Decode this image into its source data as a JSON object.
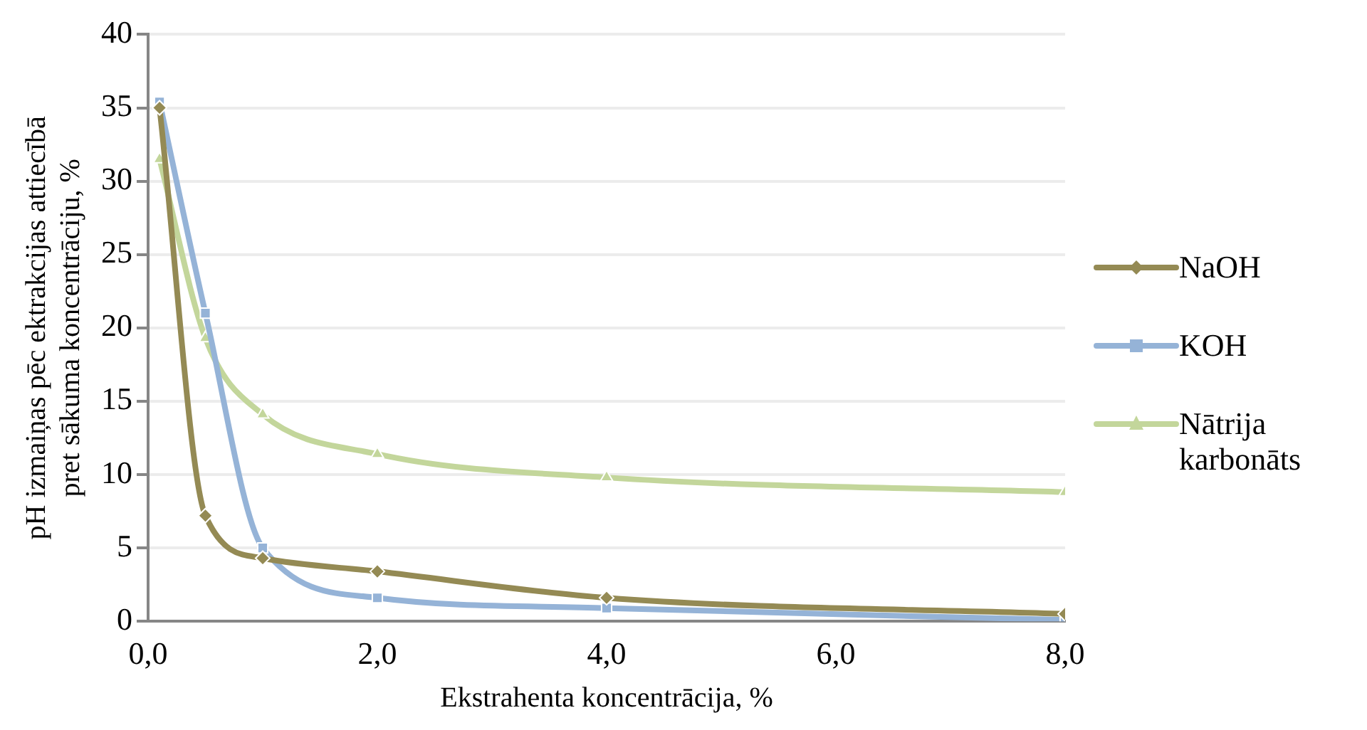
{
  "chart_data": {
    "type": "line",
    "xlabel": "Ekstrahenta koncentrācija, %",
    "ylabel": "pH izmaiņas pēc ektrakcijas attiecībā pret sākuma koncentrāciju, %",
    "x": [
      0.1,
      0.5,
      1,
      2,
      4,
      8
    ],
    "series": [
      {
        "name": "NaOH",
        "color": "#948a54",
        "marker": "diamond",
        "values": [
          35,
          7.2,
          4.3,
          3.4,
          1.6,
          0.5
        ]
      },
      {
        "name": "KOH",
        "color": "#95b3d7",
        "marker": "square",
        "values": [
          35.4,
          21,
          5,
          1.6,
          0.9,
          0.1
        ]
      },
      {
        "name": "Nātrija karbonāts",
        "color": "#c3d69b",
        "marker": "triangle",
        "values": [
          31.5,
          19.3,
          14.1,
          11.4,
          9.8,
          8.8
        ]
      }
    ],
    "xlim": [
      0,
      8
    ],
    "xticks": [
      {
        "value": 0,
        "label": "0,0"
      },
      {
        "value": 2,
        "label": "2,0"
      },
      {
        "value": 4,
        "label": "4,0"
      },
      {
        "value": 6,
        "label": "6,0"
      },
      {
        "value": 8,
        "label": "8,0"
      }
    ],
    "ylim": [
      0,
      40
    ],
    "yticks": [
      0,
      5,
      10,
      15,
      20,
      25,
      30,
      35,
      40
    ],
    "grid": "y",
    "legend": "right"
  }
}
